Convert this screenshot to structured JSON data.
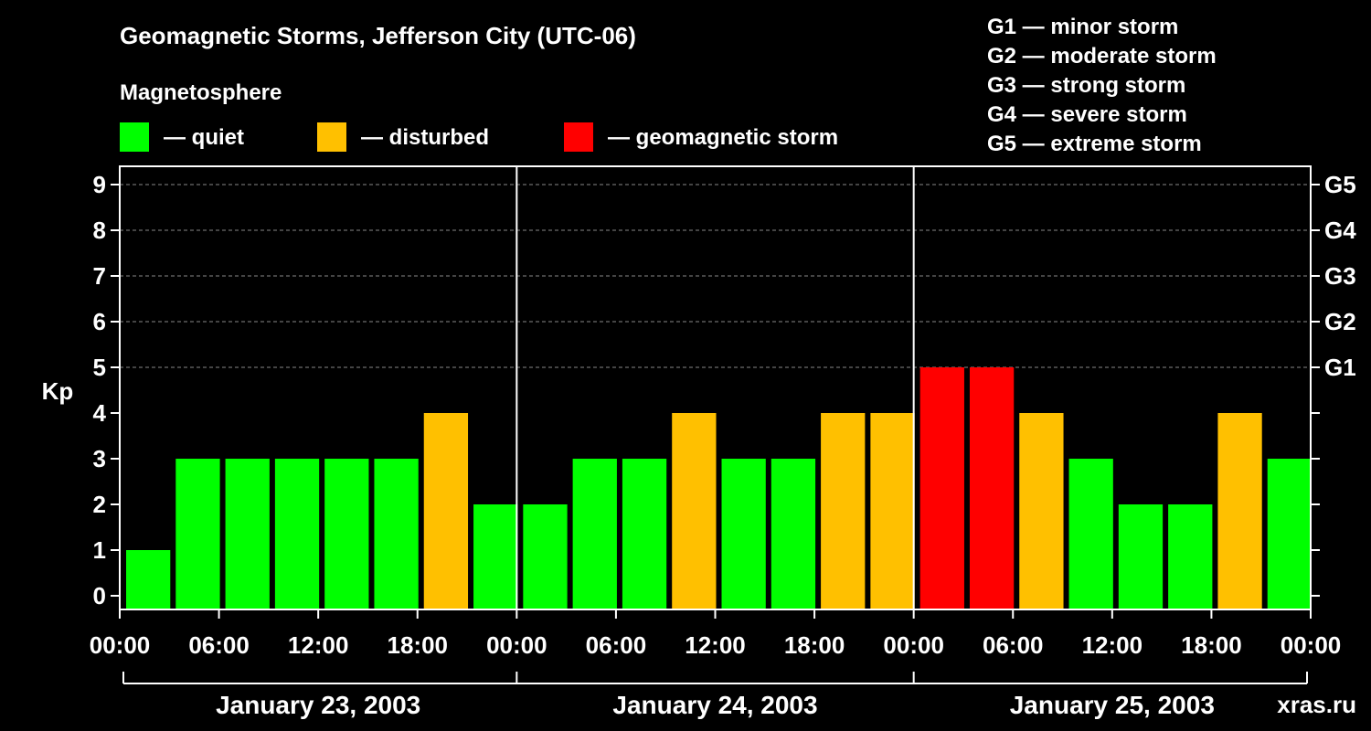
{
  "chart_data": {
    "type": "bar",
    "title": "Geomagnetic Storms, Jefferson City (UTC-06)",
    "subtitle": "Magnetosphere",
    "ylabel": "Kp",
    "ylim": [
      0,
      9
    ],
    "yticks": [
      "0",
      "1",
      "2",
      "3",
      "4",
      "5",
      "6",
      "7",
      "8",
      "9"
    ],
    "g_levels": [
      {
        "kp": 5,
        "label": "G1"
      },
      {
        "kp": 6,
        "label": "G2"
      },
      {
        "kp": 7,
        "label": "G3"
      },
      {
        "kp": 8,
        "label": "G4"
      },
      {
        "kp": 9,
        "label": "G5"
      }
    ],
    "xticks": [
      "00:00",
      "06:00",
      "12:00",
      "18:00",
      "00:00",
      "06:00",
      "12:00",
      "18:00",
      "00:00",
      "06:00",
      "12:00",
      "18:00",
      "00:00"
    ],
    "days": [
      "January 23, 2003",
      "January 24, 2003",
      "January 25, 2003"
    ],
    "interval_hours": 3,
    "values": [
      1,
      3,
      3,
      3,
      3,
      3,
      4,
      2,
      2,
      3,
      3,
      4,
      3,
      3,
      4,
      4,
      5,
      5,
      4,
      3,
      2,
      2,
      4,
      3
    ],
    "legend": [
      {
        "label": "— quiet",
        "color": "#00ff00"
      },
      {
        "label": "— disturbed",
        "color": "#ffc000"
      },
      {
        "label": "— geomagnetic storm",
        "color": "#ff0000"
      }
    ],
    "scale_legend": [
      "G1 — minor storm",
      "G2 — moderate storm",
      "G3 — strong storm",
      "G4 — severe storm",
      "G5 — extreme storm"
    ],
    "watermark": "xras.ru"
  },
  "colors": {
    "quiet": "#00ff00",
    "disturbed": "#ffc000",
    "storm": "#ff0000",
    "background": "#000000",
    "foreground": "#ffffff",
    "grid": "#888888",
    "watermark": "#555555"
  }
}
